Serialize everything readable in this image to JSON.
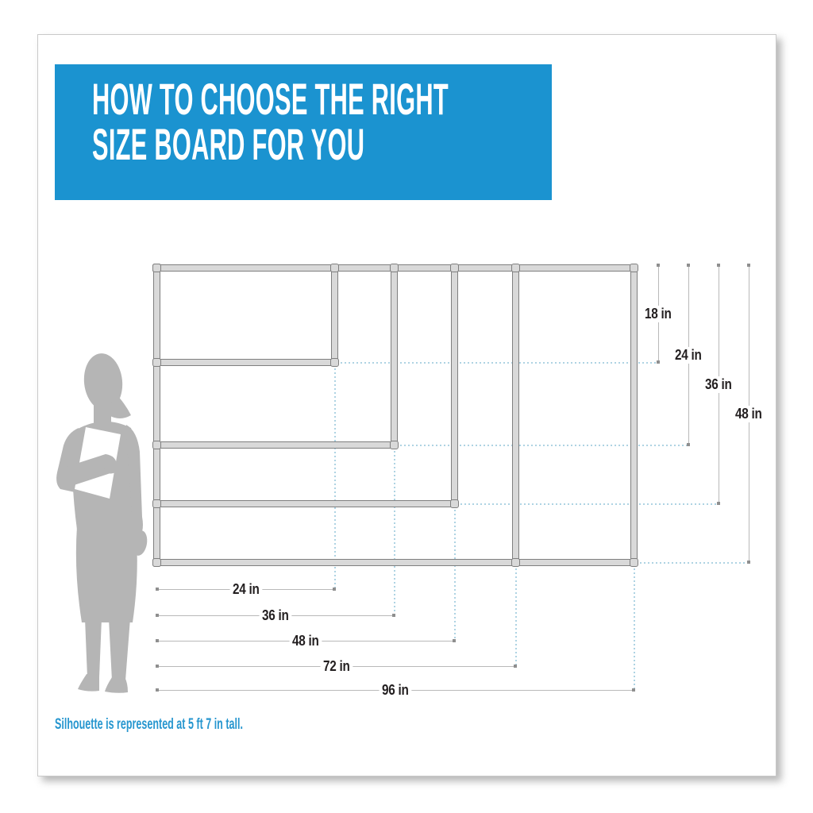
{
  "header": {
    "title_lines": [
      "HOW TO CHOOSE THE RIGHT",
      "SIZE BOARD FOR YOU"
    ]
  },
  "diagram": {
    "boards": [
      {
        "width_in": 24,
        "height_in": 18
      },
      {
        "width_in": 36,
        "height_in": 24
      },
      {
        "width_in": 48,
        "height_in": 36
      },
      {
        "width_in": 72,
        "height_in": 48
      },
      {
        "width_in": 96,
        "height_in": 48
      }
    ],
    "width_dim_labels": [
      "24 in",
      "36 in",
      "48 in",
      "72 in",
      "96 in"
    ],
    "height_dim_labels": [
      "18 in",
      "24 in",
      "36 in",
      "48 in"
    ]
  },
  "note": {
    "text": "Silhouette is represented at 5 ft 7 in tall."
  },
  "colors": {
    "banner_background": "#1b93d0",
    "banner_text": "#ffffff",
    "note_text": "#2696cf",
    "frame_fill": "#d9d9d9",
    "frame_outline": "#7f7f7f",
    "dimension_line": "#b9b9b9",
    "dimension_dot": "#8f8f8f",
    "extension_dotted": "#aed3e3",
    "dimension_label": "#231f20",
    "silhouette": "#b5b5b5",
    "folder_fill": "#ffffff",
    "card_background": "#ffffff",
    "card_border": "#c9c9c9"
  }
}
